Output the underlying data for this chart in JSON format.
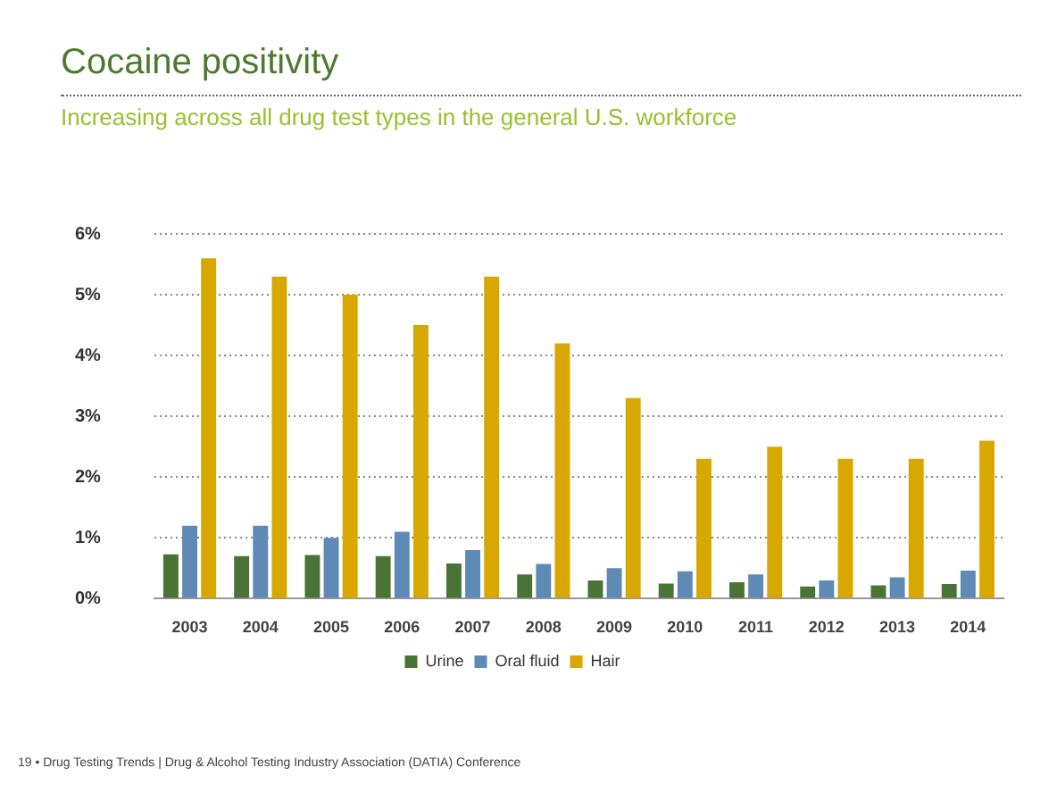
{
  "chart_data": {
    "type": "bar",
    "title": "Cocaine positivity",
    "subtitle": "Increasing across all drug test types in the general U.S. workforce",
    "categories": [
      "2003",
      "2004",
      "2005",
      "2006",
      "2007",
      "2008",
      "2009",
      "2010",
      "2011",
      "2012",
      "2013",
      "2014"
    ],
    "series": [
      {
        "name": "Urine",
        "color": "#4a7436",
        "values": [
          0.73,
          0.7,
          0.72,
          0.7,
          0.58,
          0.4,
          0.3,
          0.25,
          0.27,
          0.2,
          0.22,
          0.24
        ]
      },
      {
        "name": "Oral fluid",
        "color": "#5f8ab5",
        "values": [
          1.2,
          1.2,
          1.0,
          1.1,
          0.8,
          0.57,
          0.5,
          0.45,
          0.4,
          0.3,
          0.35,
          0.46
        ]
      },
      {
        "name": "Hair",
        "color": "#d8a800",
        "values": [
          5.6,
          5.3,
          5.0,
          4.5,
          5.3,
          4.2,
          3.3,
          2.3,
          2.5,
          2.3,
          2.3,
          2.6
        ]
      }
    ],
    "ylim": [
      0,
      6
    ],
    "yticks": [
      {
        "value": 0,
        "label": "0%"
      },
      {
        "value": 1,
        "label": "1%"
      },
      {
        "value": 2,
        "label": "2%"
      },
      {
        "value": 3,
        "label": "3%"
      },
      {
        "value": 4,
        "label": "4%"
      },
      {
        "value": 5,
        "label": "5%"
      },
      {
        "value": 6,
        "label": "6%"
      }
    ],
    "grid": "y",
    "legend": "bottom",
    "annotations": [
      "19 • Drug Testing Trends | Drug & Alcohol Testing Industry Association (DATIA) Conference"
    ]
  }
}
